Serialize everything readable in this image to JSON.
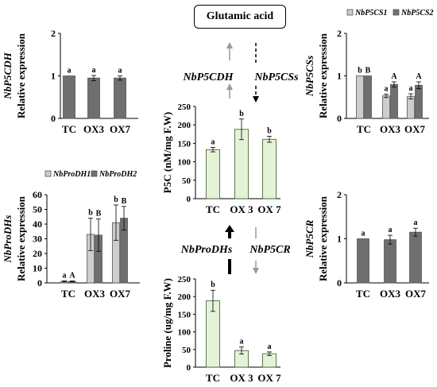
{
  "center_box": "Glutamic acid",
  "pathway_labels": {
    "nbp5cdh": "NbP5CDH",
    "nbp5css": "NbP5CSs",
    "nbprodhs": "NbProDHs",
    "nbp5cr": "NbP5CR"
  },
  "colors": {
    "dark_bar": "#6f6f6f",
    "light_bar": "#cdcdcd",
    "green_bar": "#e4f2d8",
    "green_edge": "#3a5a28"
  },
  "chart_data": [
    {
      "id": "p5cdh",
      "type": "bar",
      "ylabel_italic": "NbP5CDH",
      "ylabel": "Relative expression",
      "categories": [
        "TC",
        "OX3",
        "OX7"
      ],
      "ylim": [
        0,
        2
      ],
      "yticks": [
        "0",
        "1",
        "2"
      ],
      "series": [
        {
          "color": "dark_bar",
          "values": [
            1.0,
            0.95,
            0.95
          ],
          "errors": [
            0.0,
            0.06,
            0.05
          ],
          "letters": [
            "a",
            "a",
            "a"
          ]
        }
      ]
    },
    {
      "id": "p5css",
      "type": "bar",
      "ylabel_italic": "NbP5CSs",
      "ylabel": "Relative expression",
      "categories": [
        "TC",
        "OX3",
        "OX7"
      ],
      "ylim": [
        0,
        2
      ],
      "yticks": [
        "0",
        "1",
        "2"
      ],
      "legend": [
        "NbP5CS1",
        "NbP5CS2"
      ],
      "series": [
        {
          "name": "NbP5CS1",
          "color": "light_bar",
          "values": [
            1.0,
            0.53,
            0.52
          ],
          "errors": [
            0.0,
            0.04,
            0.06
          ],
          "letters": [
            "b",
            "a",
            "a"
          ]
        },
        {
          "name": "NbP5CS2",
          "color": "dark_bar",
          "values": [
            1.0,
            0.8,
            0.78
          ],
          "errors": [
            0.0,
            0.06,
            0.08
          ],
          "letters": [
            "B",
            "A",
            "A"
          ]
        }
      ]
    },
    {
      "id": "prodhs",
      "type": "bar",
      "ylabel_italic": "NbProDHs",
      "ylabel": "Relative expression",
      "categories": [
        "TC",
        "OX3",
        "OX7"
      ],
      "ylim": [
        0,
        60
      ],
      "yticks": [
        "0",
        "10",
        "20",
        "30",
        "40",
        "50",
        "60"
      ],
      "legend": [
        "NbProDH1",
        "NbProDH2"
      ],
      "series": [
        {
          "name": "NbProDH1",
          "color": "light_bar",
          "values": [
            1,
            33,
            41
          ],
          "errors": [
            0.3,
            11,
            12
          ],
          "letters": [
            "a",
            "b",
            "b"
          ]
        },
        {
          "name": "NbProDH2",
          "color": "dark_bar",
          "values": [
            1,
            32.5,
            44
          ],
          "errors": [
            0.3,
            11,
            8
          ],
          "letters": [
            "A",
            "B",
            "B"
          ]
        }
      ]
    },
    {
      "id": "p5cr",
      "type": "bar",
      "ylabel_italic": "NbP5CR",
      "ylabel": "Relative expression",
      "categories": [
        "TC",
        "OX3",
        "OX7"
      ],
      "ylim": [
        0,
        2
      ],
      "yticks": [
        "0",
        "1",
        "2"
      ],
      "series": [
        {
          "color": "dark_bar",
          "values": [
            1.0,
            0.98,
            1.15
          ],
          "errors": [
            0.0,
            0.1,
            0.09
          ],
          "letters": [
            "a",
            "a",
            "a"
          ]
        }
      ]
    },
    {
      "id": "p5c",
      "type": "bar",
      "ylabel": "P5C (nM/mg F.W)",
      "categories": [
        "TC",
        "OX 3",
        "OX 7"
      ],
      "ylim": [
        0,
        250
      ],
      "yticks": [
        "0",
        "50",
        "100",
        "150",
        "200",
        "250"
      ],
      "series": [
        {
          "color": "green_bar",
          "values": [
            133,
            188,
            161
          ],
          "errors": [
            6,
            28,
            8
          ],
          "letters": [
            "a",
            "b",
            "b"
          ]
        }
      ]
    },
    {
      "id": "proline",
      "type": "bar",
      "ylabel": "Proline (ug/mg F.W)",
      "categories": [
        "TC",
        "OX 3",
        "OX 7"
      ],
      "ylim": [
        0,
        250
      ],
      "yticks": [
        "0",
        "50",
        "100",
        "150",
        "200",
        "250"
      ],
      "series": [
        {
          "color": "green_bar",
          "values": [
            188,
            47,
            38
          ],
          "errors": [
            30,
            10,
            5
          ],
          "letters": [
            "b",
            "a",
            "a"
          ]
        }
      ]
    }
  ]
}
